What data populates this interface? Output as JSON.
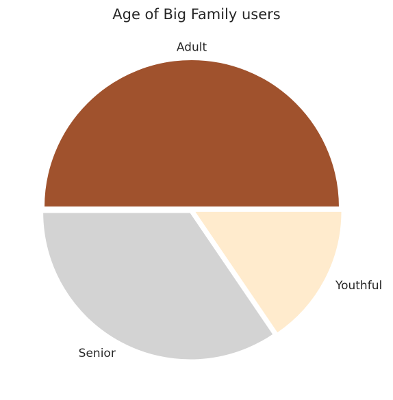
{
  "chart_data": {
    "type": "pie",
    "title": "Age of Big Family users",
    "slices": [
      {
        "label": "Adult",
        "value": 50.0,
        "color": "#A0522D"
      },
      {
        "label": "Senior",
        "value": 34.5,
        "color": "#D3D3D3"
      },
      {
        "label": "Youthful",
        "value": 15.5,
        "color": "#FFEBCD"
      }
    ],
    "start_angle_deg": 0,
    "direction": "counterclockwise",
    "exploded": true,
    "legend": "none"
  }
}
